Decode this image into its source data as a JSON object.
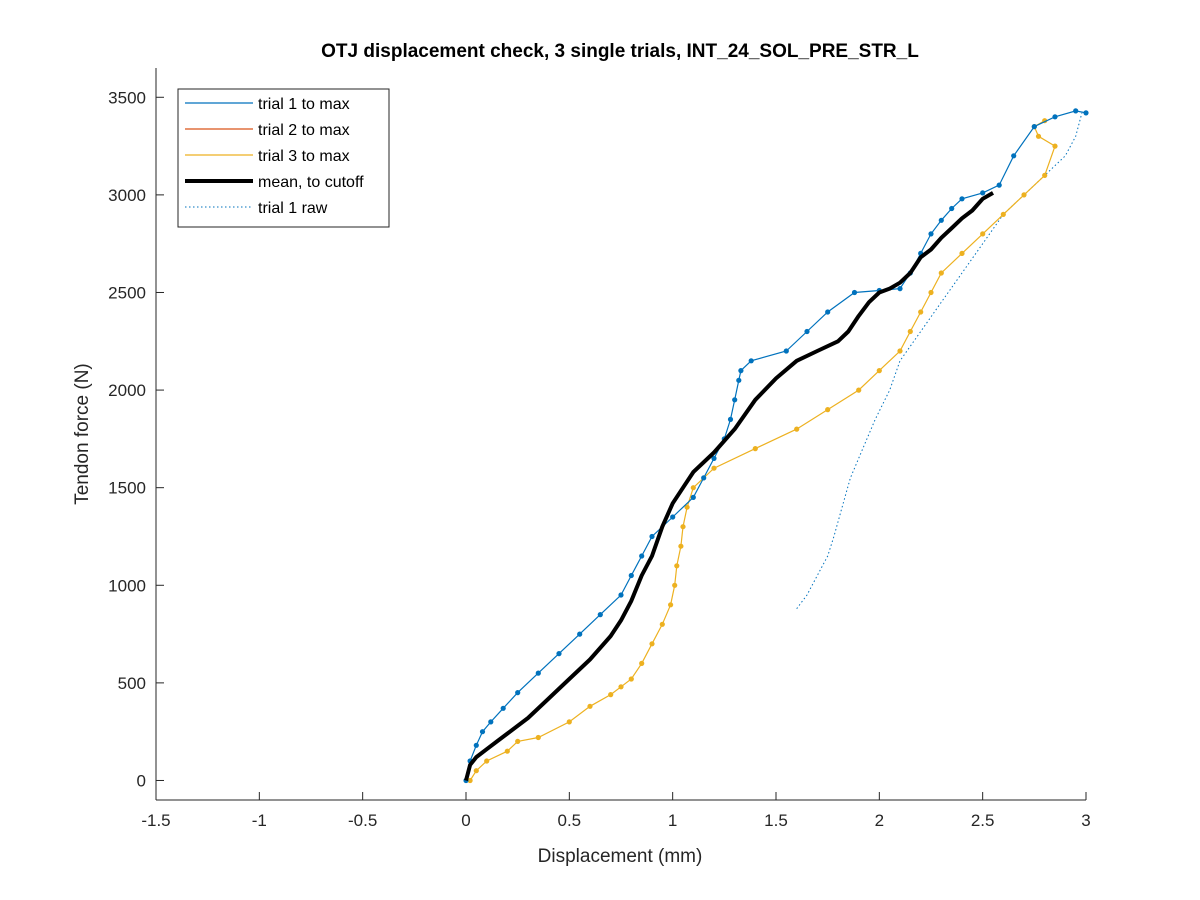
{
  "chart_data": {
    "type": "line",
    "title": "OTJ displacement check, 3 single trials, INT_24_SOL_PRE_STR_L",
    "xlabel": "Displacement (mm)",
    "ylabel": "Tendon force (N)",
    "xlim": [
      -1.5,
      3.0
    ],
    "ylim": [
      -100,
      3650
    ],
    "xticks": [
      "-1.5",
      "-1",
      "-0.5",
      "0",
      "0.5",
      "1",
      "1.5",
      "2",
      "2.5",
      "3"
    ],
    "yticks": [
      "0",
      "500",
      "1000",
      "1500",
      "2000",
      "2500",
      "3000",
      "3500"
    ],
    "grid": false,
    "legend_position": "top-left",
    "series": [
      {
        "name": "trial 1 to max",
        "color": "#0072BD",
        "style": "solid",
        "x": [
          0,
          0.02,
          0.05,
          0.08,
          0.12,
          0.18,
          0.25,
          0.35,
          0.45,
          0.55,
          0.65,
          0.75,
          0.8,
          0.85,
          0.9,
          1.0,
          1.1,
          1.15,
          1.2,
          1.25,
          1.28,
          1.3,
          1.32,
          1.33,
          1.38,
          1.55,
          1.65,
          1.75,
          1.88,
          2.0,
          2.1,
          2.15,
          2.2,
          2.25,
          2.3,
          2.35,
          2.4,
          2.5,
          2.58,
          2.65,
          2.75,
          2.85,
          2.95,
          3.0
        ],
        "y": [
          0,
          100,
          180,
          250,
          300,
          370,
          450,
          550,
          650,
          750,
          850,
          950,
          1050,
          1150,
          1250,
          1350,
          1450,
          1550,
          1650,
          1750,
          1850,
          1950,
          2050,
          2100,
          2150,
          2200,
          2300,
          2400,
          2500,
          2510,
          2520,
          2600,
          2700,
          2800,
          2870,
          2930,
          2980,
          3010,
          3050,
          3200,
          3350,
          3400,
          3430,
          3420
        ]
      },
      {
        "name": "trial 2 to max",
        "color": "#D95319",
        "style": "solid",
        "x": [],
        "y": []
      },
      {
        "name": "trial 3 to max",
        "color": "#EDB120",
        "style": "solid",
        "x": [
          0.02,
          0.05,
          0.1,
          0.2,
          0.25,
          0.35,
          0.5,
          0.6,
          0.7,
          0.75,
          0.8,
          0.85,
          0.9,
          0.95,
          0.99,
          1.01,
          1.02,
          1.04,
          1.05,
          1.07,
          1.1,
          1.2,
          1.4,
          1.6,
          1.75,
          1.9,
          2.0,
          2.1,
          2.15,
          2.2,
          2.25,
          2.3,
          2.4,
          2.5,
          2.6,
          2.7,
          2.8,
          2.85,
          2.77,
          2.75,
          2.8
        ],
        "y": [
          0,
          50,
          100,
          150,
          200,
          220,
          300,
          380,
          440,
          480,
          520,
          600,
          700,
          800,
          900,
          1000,
          1100,
          1200,
          1300,
          1400,
          1500,
          1600,
          1700,
          1800,
          1900,
          2000,
          2100,
          2200,
          2300,
          2400,
          2500,
          2600,
          2700,
          2800,
          2900,
          3000,
          3100,
          3250,
          3300,
          3350,
          3380
        ]
      },
      {
        "name": "mean, to cutoff",
        "color": "#000000",
        "style": "solid-thick",
        "x": [
          0.0,
          0.02,
          0.05,
          0.1,
          0.15,
          0.2,
          0.3,
          0.4,
          0.5,
          0.6,
          0.7,
          0.75,
          0.8,
          0.85,
          0.9,
          0.95,
          1.0,
          1.05,
          1.1,
          1.2,
          1.3,
          1.4,
          1.5,
          1.6,
          1.7,
          1.8,
          1.85,
          1.9,
          1.95,
          2.0,
          2.05,
          2.1,
          2.15,
          2.2,
          2.25,
          2.3,
          2.35,
          2.4,
          2.45,
          2.5,
          2.55
        ],
        "y": [
          0,
          80,
          120,
          160,
          200,
          240,
          320,
          420,
          520,
          620,
          740,
          820,
          920,
          1050,
          1150,
          1300,
          1420,
          1500,
          1580,
          1680,
          1800,
          1950,
          2060,
          2150,
          2200,
          2250,
          2300,
          2380,
          2450,
          2500,
          2520,
          2550,
          2600,
          2680,
          2720,
          2780,
          2830,
          2880,
          2920,
          2980,
          3010
        ]
      },
      {
        "name": "trial 1 raw",
        "color": "#0072BD",
        "style": "dotted",
        "x": [
          1.6,
          1.65,
          1.7,
          1.75,
          1.78,
          1.82,
          1.86,
          1.92,
          1.98,
          2.05,
          2.1,
          2.2,
          2.3,
          2.4,
          2.5,
          2.6,
          2.7,
          2.8,
          2.9,
          2.95,
          2.98
        ],
        "y": [
          880,
          950,
          1050,
          1150,
          1250,
          1400,
          1550,
          1700,
          1850,
          2000,
          2150,
          2300,
          2450,
          2600,
          2750,
          2900,
          3000,
          3100,
          3200,
          3300,
          3420
        ]
      }
    ]
  }
}
